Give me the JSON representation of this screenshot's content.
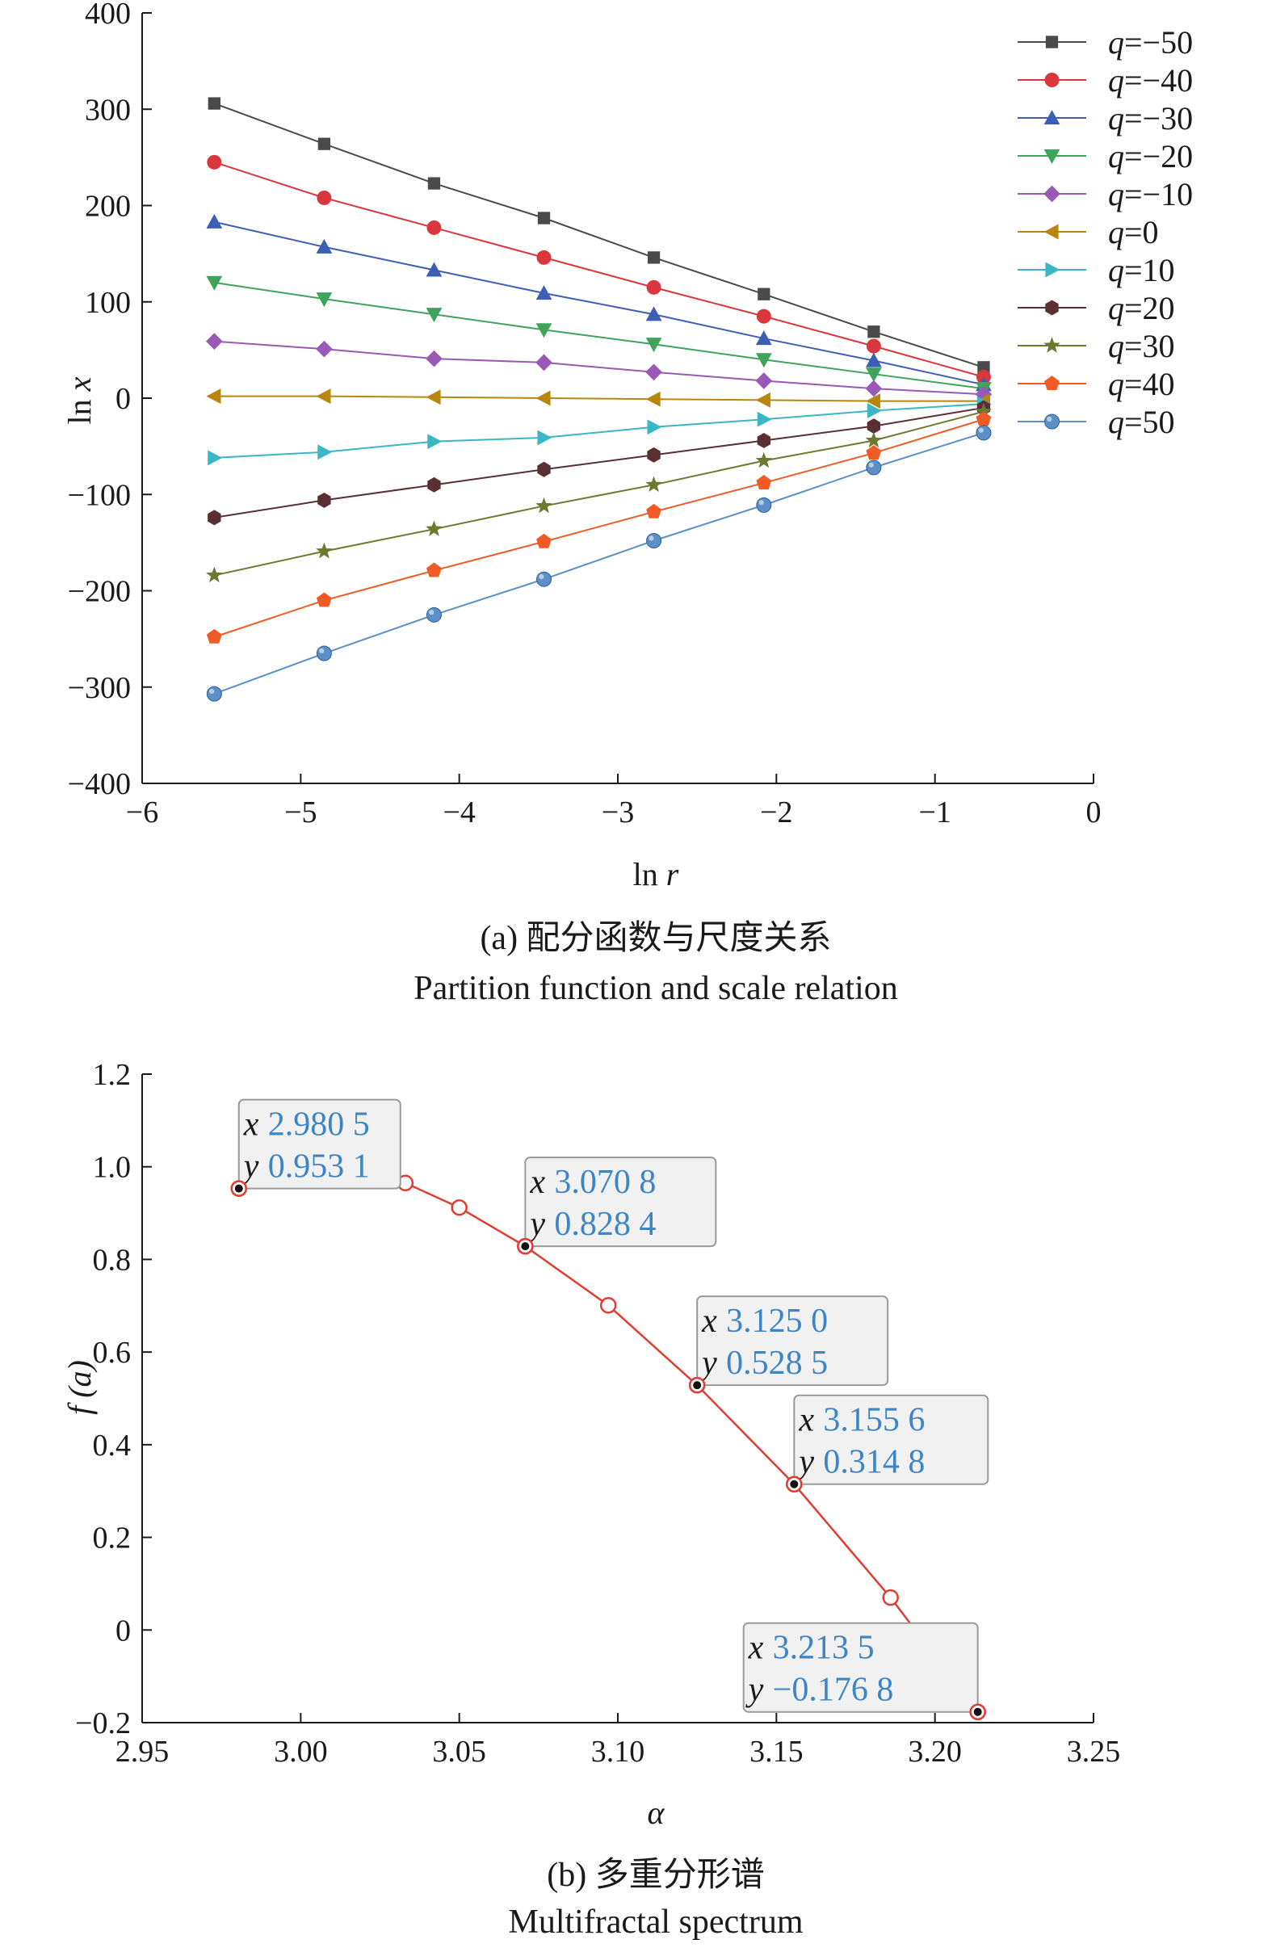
{
  "chart_data": [
    {
      "type": "line",
      "xlabel": "ln r",
      "ylabel": "ln x",
      "xlim": [
        -6,
        0
      ],
      "ylim": [
        -400,
        400
      ],
      "x_ticks": [
        "−6",
        "−5",
        "−4",
        "−3",
        "−2",
        "−1",
        "0"
      ],
      "y_ticks": [
        "−400",
        "−300",
        "−200",
        "−100",
        "0",
        "100",
        "200",
        "300",
        "400"
      ],
      "x": [
        -5.545,
        -4.852,
        -4.159,
        -3.466,
        -2.773,
        -2.079,
        -1.386,
        -0.693
      ],
      "legend_position": "top-right",
      "series": [
        {
          "name": "q=−50",
          "color": "#4a4a4a",
          "marker": "square",
          "values": [
            306,
            264,
            223,
            187,
            146,
            108,
            69,
            32
          ]
        },
        {
          "name": "q=−40",
          "color": "#d9363e",
          "marker": "circle",
          "values": [
            245,
            208,
            177,
            146,
            115,
            85,
            54,
            22
          ]
        },
        {
          "name": "q=−30",
          "color": "#3d5fb3",
          "marker": "triangle-up",
          "values": [
            183,
            157,
            133,
            109,
            87,
            62,
            39,
            14
          ]
        },
        {
          "name": "q=−20",
          "color": "#3fa45b",
          "marker": "triangle-down",
          "values": [
            120,
            103,
            87,
            71,
            56,
            40,
            25,
            10
          ]
        },
        {
          "name": "q=−10",
          "color": "#9b59b6",
          "marker": "diamond",
          "values": [
            59,
            51,
            41,
            37,
            27,
            18,
            10,
            4
          ]
        },
        {
          "name": "q=0",
          "color": "#b8860b",
          "marker": "triangle-left",
          "values": [
            2,
            2,
            1,
            0,
            -1,
            -2,
            -3,
            -3
          ]
        },
        {
          "name": "q=10",
          "color": "#3ab7c4",
          "marker": "triangle-right",
          "values": [
            -62,
            -56,
            -45,
            -41,
            -30,
            -22,
            -13,
            -6
          ]
        },
        {
          "name": "q=20",
          "color": "#5a2f33",
          "marker": "hexagon",
          "values": [
            -124,
            -106,
            -90,
            -74,
            -59,
            -44,
            -29,
            -10
          ]
        },
        {
          "name": "q=30",
          "color": "#6b7a2f",
          "marker": "star",
          "values": [
            -184,
            -159,
            -136,
            -112,
            -90,
            -65,
            -44,
            -14
          ]
        },
        {
          "name": "q=40",
          "color": "#f05a24",
          "marker": "pentagon",
          "values": [
            -248,
            -210,
            -179,
            -149,
            -118,
            -88,
            -57,
            -22
          ]
        },
        {
          "name": "q=50",
          "color": "#5b8fc7",
          "marker": "sphere",
          "values": [
            -307,
            -265,
            -225,
            -188,
            -148,
            -111,
            -72,
            -36
          ]
        }
      ],
      "caption_cn": "(a) 配分函数与尺度关系",
      "caption_en": "Partition function and scale relation"
    },
    {
      "type": "line",
      "xlabel": "α",
      "ylabel": "f (a)",
      "xlim": [
        2.95,
        3.25
      ],
      "ylim": [
        -0.2,
        1.2
      ],
      "x_ticks": [
        "2.95",
        "3.00",
        "3.05",
        "3.10",
        "3.15",
        "3.20",
        "3.25"
      ],
      "y_ticks": [
        "−0.2",
        "0",
        "0.2",
        "0.4",
        "0.6",
        "0.8",
        "1.0",
        "1.2"
      ],
      "color": "#e03c31",
      "x": [
        2.9805,
        3.033,
        3.05,
        3.0708,
        3.097,
        3.125,
        3.1556,
        3.186,
        3.2135
      ],
      "y": [
        0.9531,
        0.965,
        0.912,
        0.8284,
        0.701,
        0.5285,
        0.3148,
        0.07,
        -0.1768
      ],
      "annotations": [
        {
          "x_label": "x",
          "y_label": "y",
          "x_value": "2.980 5",
          "y_value": "0.953 1",
          "x": 2.9805,
          "y": 0.9531
        },
        {
          "x_label": "x",
          "y_label": "y",
          "x_value": "3.070 8",
          "y_value": "0.828 4",
          "x": 3.0708,
          "y": 0.8284
        },
        {
          "x_label": "x",
          "y_label": "y",
          "x_value": "3.125 0",
          "y_value": "0.528 5",
          "x": 3.125,
          "y": 0.5285
        },
        {
          "x_label": "x",
          "y_label": "y",
          "x_value": "3.155 6",
          "y_value": "0.314 8",
          "x": 3.1556,
          "y": 0.3148
        },
        {
          "x_label": "x",
          "y_label": "y",
          "x_value": "3.213 5",
          "y_value": "−0.176 8",
          "x": 3.2135,
          "y": -0.1768
        }
      ],
      "caption_cn": "(b) 多重分形谱",
      "caption_en": "Multifractal spectrum"
    }
  ]
}
